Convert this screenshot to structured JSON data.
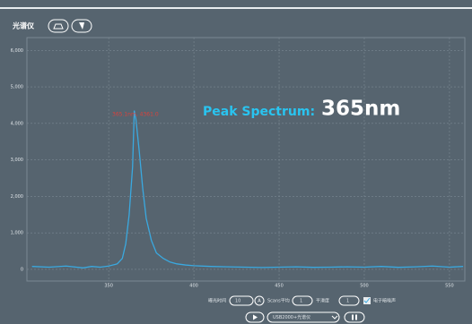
{
  "header": {
    "title": "光谱仪"
  },
  "chart_data": {
    "type": "line",
    "x": [
      305,
      315,
      325,
      335,
      340,
      345,
      350,
      355,
      358,
      360,
      362,
      364,
      365,
      366,
      368,
      370,
      372,
      375,
      378,
      382,
      386,
      390,
      395,
      400,
      410,
      420,
      430,
      440,
      450,
      460,
      470,
      480,
      490,
      500,
      510,
      520,
      530,
      540,
      550,
      558
    ],
    "series": [
      {
        "color": "#3aa9e0",
        "values": [
          80,
          60,
          90,
          40,
          80,
          60,
          90,
          150,
          300,
          700,
          1500,
          2800,
          4350,
          4100,
          3200,
          2200,
          1400,
          800,
          450,
          300,
          200,
          150,
          120,
          100,
          80,
          70,
          60,
          50,
          60,
          70,
          55,
          60,
          70,
          60,
          80,
          55,
          70,
          90,
          60,
          80
        ]
      }
    ],
    "xlim": [
      302,
      559
    ],
    "xticks": [
      350,
      400,
      450,
      500,
      550
    ],
    "ylim": [
      -320,
      6350
    ],
    "yticks": [
      0,
      {
        "value": 1000,
        "label": "1,000"
      },
      {
        "value": 2000,
        "label": "2,000"
      },
      {
        "value": 3000,
        "label": "3,000"
      },
      {
        "value": 4000,
        "label": "4,000"
      },
      {
        "value": 5000,
        "label": "5,000"
      },
      {
        "value": 6000,
        "label": "6,000"
      }
    ],
    "grid": true,
    "peak_label": "365.1nm, 4361.0",
    "headline": "Peak Spectrum:",
    "headline_value": "365nm"
  },
  "controls": {
    "exposure_label": "曝光时间",
    "exposure_value": "10",
    "auto_button": "A",
    "scans_label": "Scans平均",
    "scans_value": "1",
    "smooth_label": "平滑度",
    "smooth_value": "1",
    "dark_label": "电子暗噪声",
    "device": "USB2000+光谱仪"
  }
}
